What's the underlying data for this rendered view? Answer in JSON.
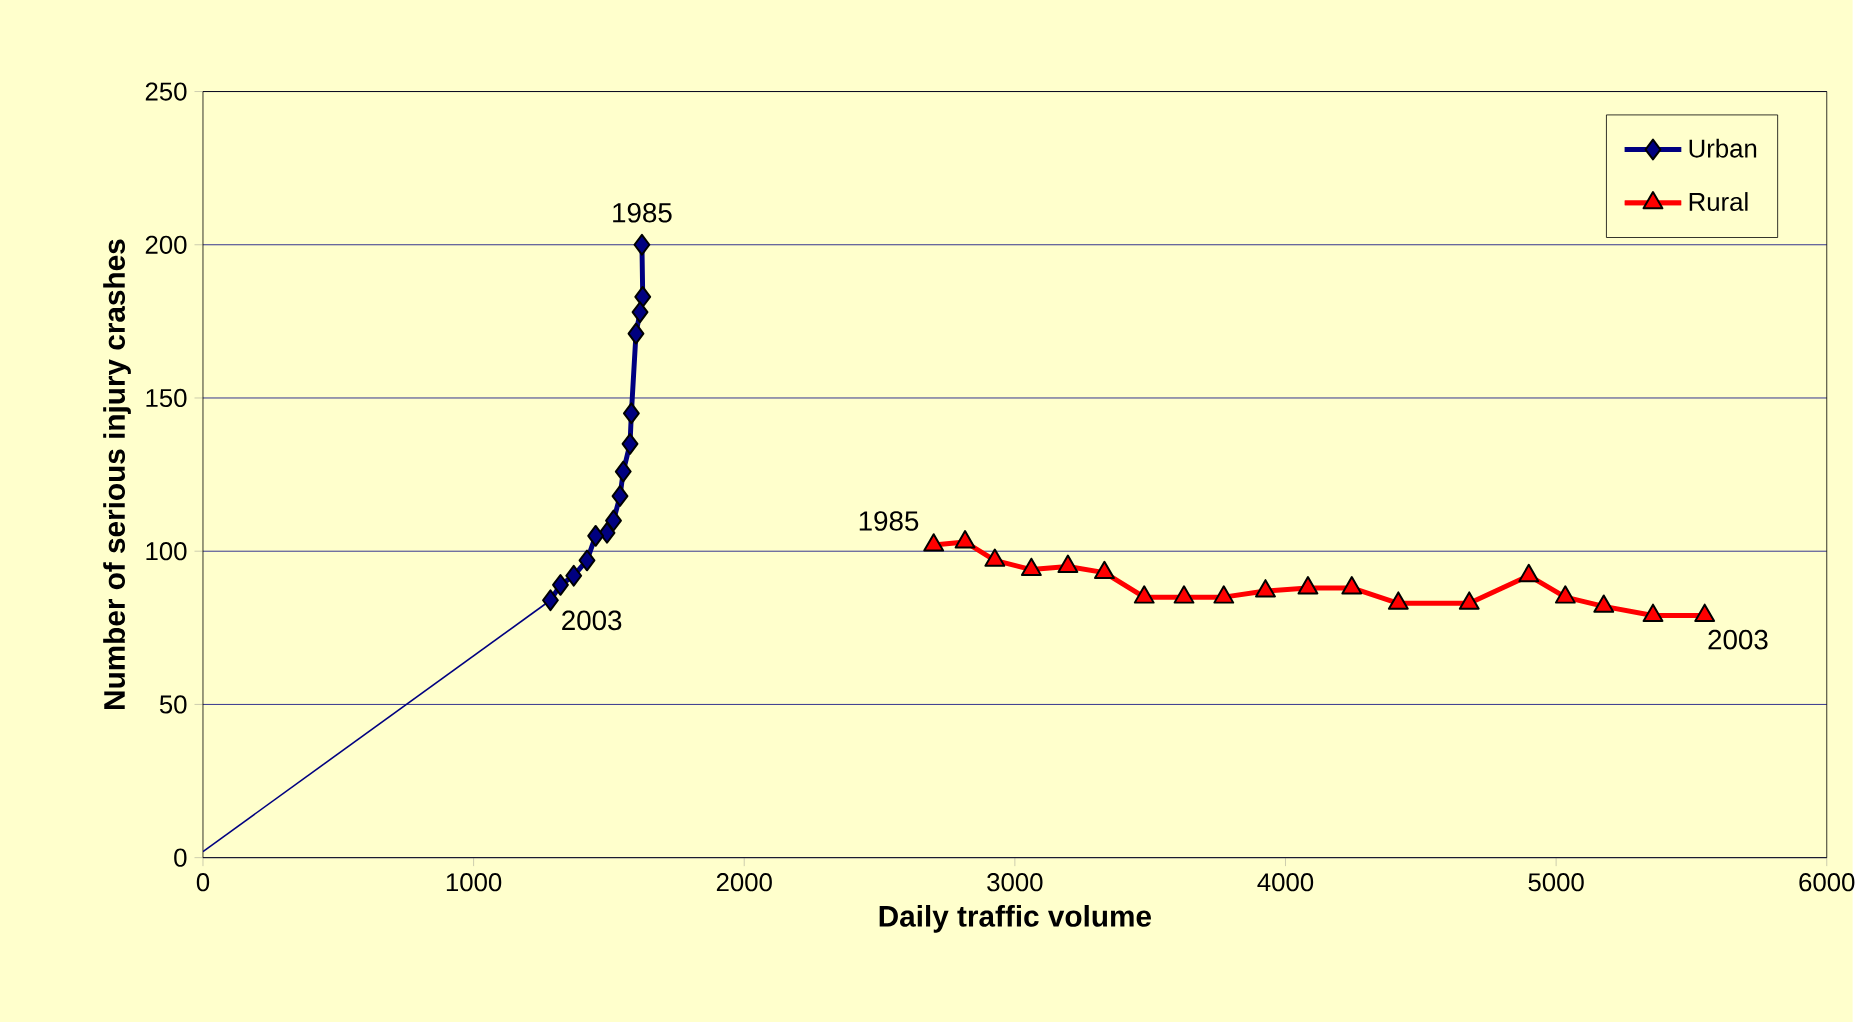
{
  "chart_data": {
    "type": "line",
    "xlabel": "Daily traffic volume",
    "ylabel": "Number of serious injury crashes",
    "xlim": [
      0,
      6000
    ],
    "xticks": [
      0,
      1000,
      2000,
      3000,
      4000,
      5000,
      6000
    ],
    "ylim": [
      0,
      250
    ],
    "yticks": [
      0,
      50,
      100,
      150,
      200,
      250
    ],
    "grid": "y",
    "legend": "top right",
    "series": [
      {
        "name": "Urban",
        "color": "#000080",
        "marker": "diamond",
        "x": [
          1622,
          1625,
          1615,
          1600,
          1583,
          1578,
          1553,
          1541,
          1517,
          1493,
          1451,
          1419,
          1370,
          1321,
          1284
        ],
        "values": [
          200,
          183,
          178,
          171,
          145,
          135,
          126,
          118,
          110,
          106,
          105,
          97,
          92,
          89,
          84
        ]
      },
      {
        "name": "Rural",
        "color": "#ff0000",
        "marker": "triangle",
        "x": [
          2700,
          2816,
          2926,
          3061,
          3196,
          3331,
          3478,
          3625,
          3772,
          3926,
          4083,
          4245,
          4417,
          4679,
          4899,
          5034,
          5176,
          5358,
          5549
        ],
        "values": [
          102,
          103,
          97,
          94,
          95,
          93,
          85,
          85,
          85,
          87,
          88,
          88,
          83,
          83,
          92,
          85,
          82,
          79,
          79
        ]
      },
      {
        "color": "#000080",
        "marker": "none",
        "x": [
          0,
          1284
        ],
        "values": [
          2,
          84
        ]
      }
    ],
    "annotations": [
      {
        "text": "1985",
        "x": 1622,
        "y": 200
      },
      {
        "text": "2003",
        "x": 1284,
        "y": 84
      },
      {
        "text": "1985",
        "x": 2700,
        "y": 102
      },
      {
        "text": "2003",
        "x": 5549,
        "y": 79
      }
    ]
  }
}
